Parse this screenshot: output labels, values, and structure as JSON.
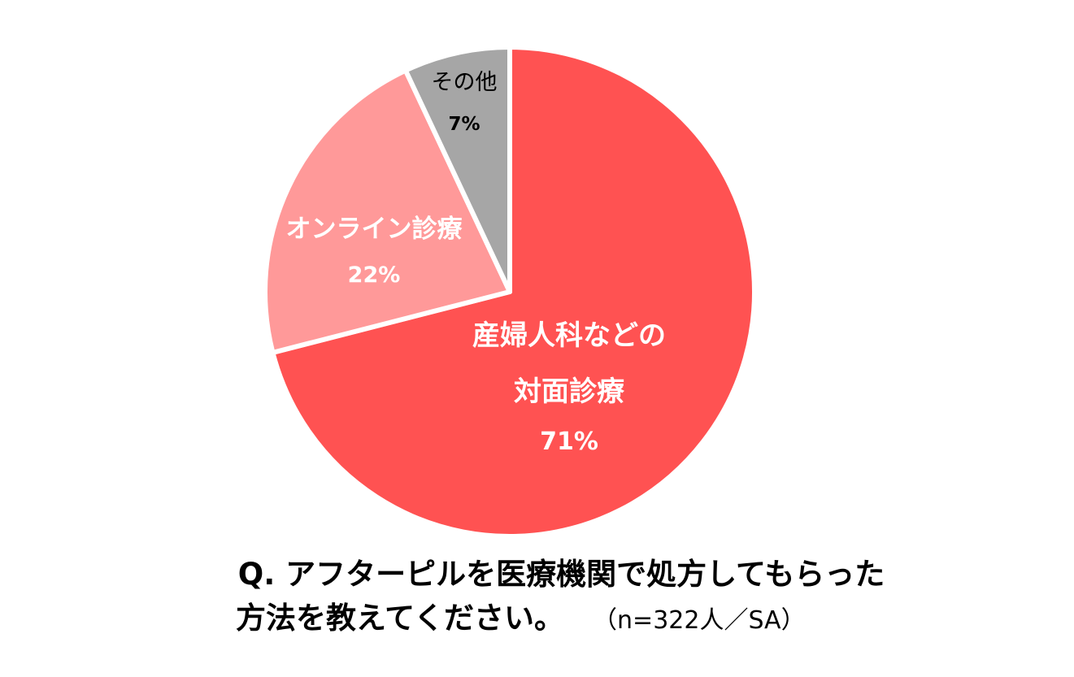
{
  "chart_data": {
    "type": "pie",
    "slices": [
      {
        "label_lines": [
          "産婦人科などの",
          "対面診療"
        ],
        "value": 71,
        "value_label": "71%",
        "color": "#FF5252",
        "label_color": "#ffffff"
      },
      {
        "label_lines": [
          "オンライン診療"
        ],
        "value": 22,
        "value_label": "22%",
        "color": "#FF9999",
        "label_color": "#ffffff"
      },
      {
        "label_lines": [
          "その他"
        ],
        "value": 7,
        "value_label": "7%",
        "color": "#A6A6A6",
        "label_color": "#000000"
      }
    ],
    "start_angle": "12 o'clock",
    "direction": "clockwise",
    "legend": "none"
  },
  "caption": {
    "line1": "Q. アフターピルを医療機関で処方してもらった",
    "line2": "方法を教えてください。",
    "note": "（n=322人／SA）"
  }
}
